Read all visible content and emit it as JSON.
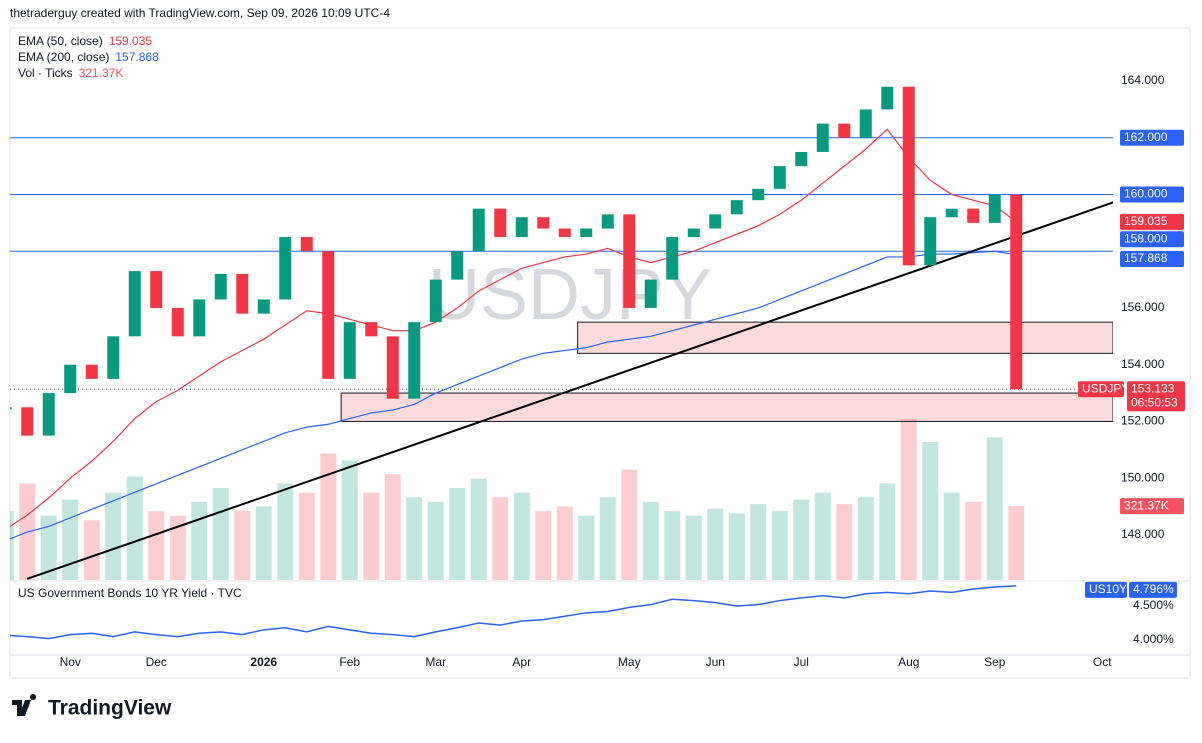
{
  "header": "thetraderguy created with TradingView.com, Sep 09, 2026 10:09 UTC-4",
  "footer_logo": "TradingView",
  "chart_data": {
    "type": "candlestick",
    "watermark": "USDJPY",
    "up_color": "#089981",
    "down_color": "#f23645",
    "categories": [
      null,
      null,
      null,
      "Nov",
      null,
      null,
      null,
      "Dec",
      null,
      null,
      null,
      null,
      "2026",
      null,
      null,
      null,
      "Feb",
      null,
      null,
      null,
      "Mar",
      null,
      null,
      null,
      "Apr",
      null,
      null,
      null,
      null,
      "May",
      null,
      null,
      null,
      "Jun",
      null,
      null,
      null,
      "Jul",
      null,
      null,
      null,
      null,
      "Aug",
      null,
      null,
      null,
      "Sep",
      null,
      null,
      null,
      null,
      "Oct"
    ],
    "values": [
      152.5,
      151.5,
      153.0,
      154.0,
      153.5,
      155.0,
      157.3,
      156.0,
      155.0,
      156.3,
      157.2,
      155.8,
      156.3,
      158.5,
      158.0,
      153.5,
      155.5,
      155.0,
      152.8,
      155.5,
      157.0,
      158.0,
      159.5,
      158.5,
      159.2,
      158.8,
      158.5,
      158.8,
      159.3,
      156.0,
      157.0,
      158.5,
      158.8,
      159.3,
      159.8,
      160.2,
      161.0,
      161.5,
      162.5,
      162.0,
      163.0,
      163.8,
      157.5,
      159.2,
      159.5,
      159.0,
      160.0,
      153.133,
      null,
      null,
      null,
      null
    ],
    "series": [
      {
        "name": "EMA (50, close)",
        "color": "#f23645",
        "last": 159.035,
        "values": [
          148.2,
          148.7,
          149.3,
          150.0,
          150.6,
          151.3,
          152.1,
          152.7,
          153.1,
          153.6,
          154.1,
          154.5,
          154.9,
          155.4,
          155.9,
          155.8,
          155.6,
          155.4,
          155.2,
          155.2,
          155.5,
          156.0,
          156.6,
          157.0,
          157.4,
          157.6,
          157.8,
          157.9,
          158.1,
          157.8,
          157.6,
          157.8,
          158.0,
          158.3,
          158.6,
          158.9,
          159.3,
          159.8,
          160.4,
          161.0,
          161.6,
          162.3,
          161.3,
          160.5,
          160.0,
          159.8,
          159.6,
          159.035,
          null,
          null,
          null,
          null
        ]
      },
      {
        "name": "EMA (200, close)",
        "color": "#2962ff",
        "last": 157.868,
        "values": [
          147.8,
          148.1,
          148.3,
          148.6,
          148.9,
          149.2,
          149.5,
          149.8,
          150.1,
          150.4,
          150.7,
          151.0,
          151.3,
          151.6,
          151.8,
          151.9,
          152.1,
          152.3,
          152.4,
          152.6,
          153.0,
          153.3,
          153.6,
          153.9,
          154.2,
          154.4,
          154.5,
          154.6,
          154.8,
          154.9,
          155.0,
          155.2,
          155.4,
          155.6,
          155.8,
          156.0,
          156.3,
          156.6,
          156.9,
          157.2,
          157.5,
          157.8,
          157.8,
          157.9,
          157.9,
          157.95,
          158.0,
          157.868,
          null,
          null,
          null,
          null
        ]
      }
    ],
    "volume": {
      "name": "Vol · Ticks",
      "last": {
        "value": 321370,
        "label": "321.37K"
      },
      "ylim": [
        0,
        2400000
      ],
      "values": [
        300000,
        420000,
        280000,
        350000,
        260000,
        380000,
        450000,
        300000,
        280000,
        340000,
        400000,
        300000,
        320000,
        420000,
        380000,
        550000,
        520000,
        380000,
        460000,
        360000,
        340000,
        400000,
        440000,
        360000,
        380000,
        300000,
        320000,
        280000,
        360000,
        480000,
        340000,
        300000,
        280000,
        310000,
        290000,
        330000,
        300000,
        350000,
        380000,
        330000,
        360000,
        420000,
        700000,
        600000,
        380000,
        340000,
        620000,
        321370,
        null,
        null,
        null,
        null
      ]
    },
    "ylim": [
      146.41,
      165.87
    ],
    "yticks": [
      {
        "value": 148,
        "label": "148.000"
      },
      {
        "value": 150,
        "label": "150.000"
      },
      {
        "value": 152,
        "label": "152.000"
      },
      {
        "value": 154,
        "label": "154.000"
      },
      {
        "value": 156,
        "label": "156.000"
      },
      {
        "value": 164,
        "label": "164.000"
      }
    ],
    "levels": [
      {
        "value": 162,
        "label": "162.000"
      },
      {
        "value": 160,
        "label": "160.000"
      },
      {
        "value": 158,
        "label": "158.000"
      }
    ],
    "trendline": {
      "from": {
        "index": 1,
        "price": 146.45
      },
      "to": {
        "index": 51.8,
        "price": 159.8
      }
    },
    "zones": [
      {
        "start": 26.6,
        "top": 155.5,
        "bottom": 154.4
      },
      {
        "start": 15.6,
        "top": 153.0,
        "bottom": 152.0
      }
    ],
    "last_price": {
      "symbol": "USDJPY",
      "value": 153.133,
      "countdown": "06:50:53"
    },
    "lower_pane": {
      "title": "US Government Bonds 10 YR Yield · TVC",
      "symbol": "US10Y",
      "color": "#2962ff",
      "last": {
        "value": 4.796,
        "label": "4.796%"
      },
      "ylim": [
        3.78,
        4.853
      ],
      "yticks": [
        {
          "value": 4.5,
          "label": "4.500%"
        },
        {
          "value": 4.0,
          "label": "4.000%"
        }
      ],
      "values": [
        4.07,
        4.05,
        4.02,
        4.08,
        4.1,
        4.05,
        4.12,
        4.08,
        4.05,
        4.1,
        4.12,
        4.08,
        4.15,
        4.18,
        4.12,
        4.2,
        4.15,
        4.1,
        4.08,
        4.05,
        4.12,
        4.18,
        4.25,
        4.22,
        4.28,
        4.3,
        4.35,
        4.4,
        4.42,
        4.48,
        4.52,
        4.6,
        4.58,
        4.55,
        4.5,
        4.52,
        4.58,
        4.62,
        4.65,
        4.62,
        4.68,
        4.7,
        4.68,
        4.72,
        4.7,
        4.75,
        4.78,
        4.796,
        null,
        null,
        null,
        null
      ]
    }
  }
}
